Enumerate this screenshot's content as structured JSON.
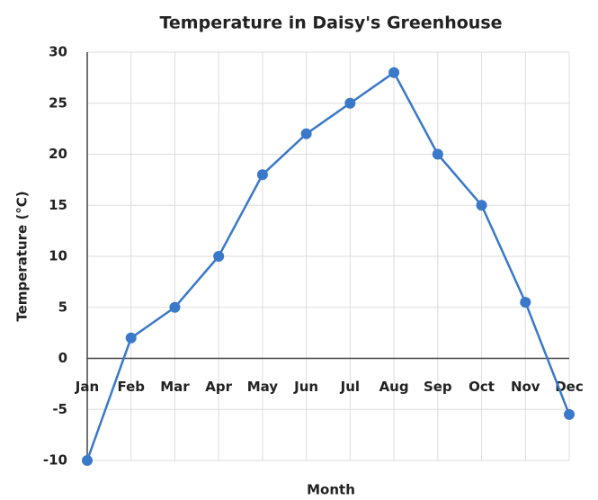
{
  "chart_data": {
    "type": "line",
    "title": "Temperature in Daisy's Greenhouse",
    "x_label": "Month",
    "y_label": "Temperature (°C)",
    "categories": [
      "Jan",
      "Feb",
      "Mar",
      "Apr",
      "May",
      "Jun",
      "Jul",
      "Aug",
      "Sep",
      "Oct",
      "Nov",
      "Dec"
    ],
    "series": [
      {
        "name": "Temperature",
        "color": "#3a78c9",
        "values": [
          -10,
          2,
          5,
          10,
          18,
          22,
          25,
          28,
          20,
          15,
          5.5,
          -5.5
        ]
      }
    ],
    "ylim": [
      -10,
      30
    ],
    "yticks": [
      -10,
      -5,
      0,
      5,
      10,
      15,
      20,
      25,
      30
    ],
    "grid": true
  }
}
